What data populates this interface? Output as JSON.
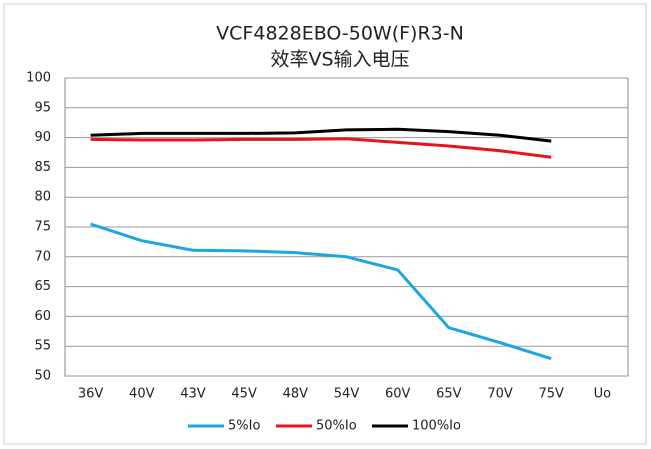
{
  "chart_data": {
    "type": "line",
    "title": "VCF4828EBO-50W(F)R3-N",
    "subtitle": "效率VS输入电压",
    "categories": [
      "36V",
      "40V",
      "43V",
      "45V",
      "48V",
      "54V",
      "60V",
      "65V",
      "70V",
      "75V",
      "Uo"
    ],
    "series": [
      {
        "name": "5%Io",
        "color": "#1ea6e0",
        "values": [
          75.5,
          72.7,
          71.1,
          71.0,
          70.7,
          70.0,
          67.8,
          58.1,
          55.6,
          52.9,
          null
        ]
      },
      {
        "name": "50%Io",
        "color": "#e8141c",
        "values": [
          89.7,
          89.6,
          89.6,
          89.7,
          89.7,
          89.8,
          89.2,
          88.6,
          87.8,
          86.7,
          null
        ]
      },
      {
        "name": "100%Io",
        "color": "#000000",
        "values": [
          90.4,
          90.7,
          90.7,
          90.7,
          90.8,
          91.3,
          91.4,
          91.0,
          90.4,
          89.4,
          null
        ]
      }
    ],
    "ylim": [
      50,
      100
    ],
    "yticks": [
      50,
      55,
      60,
      65,
      70,
      75,
      80,
      85,
      90,
      95,
      100
    ],
    "grid": true,
    "legend": "bottom"
  }
}
